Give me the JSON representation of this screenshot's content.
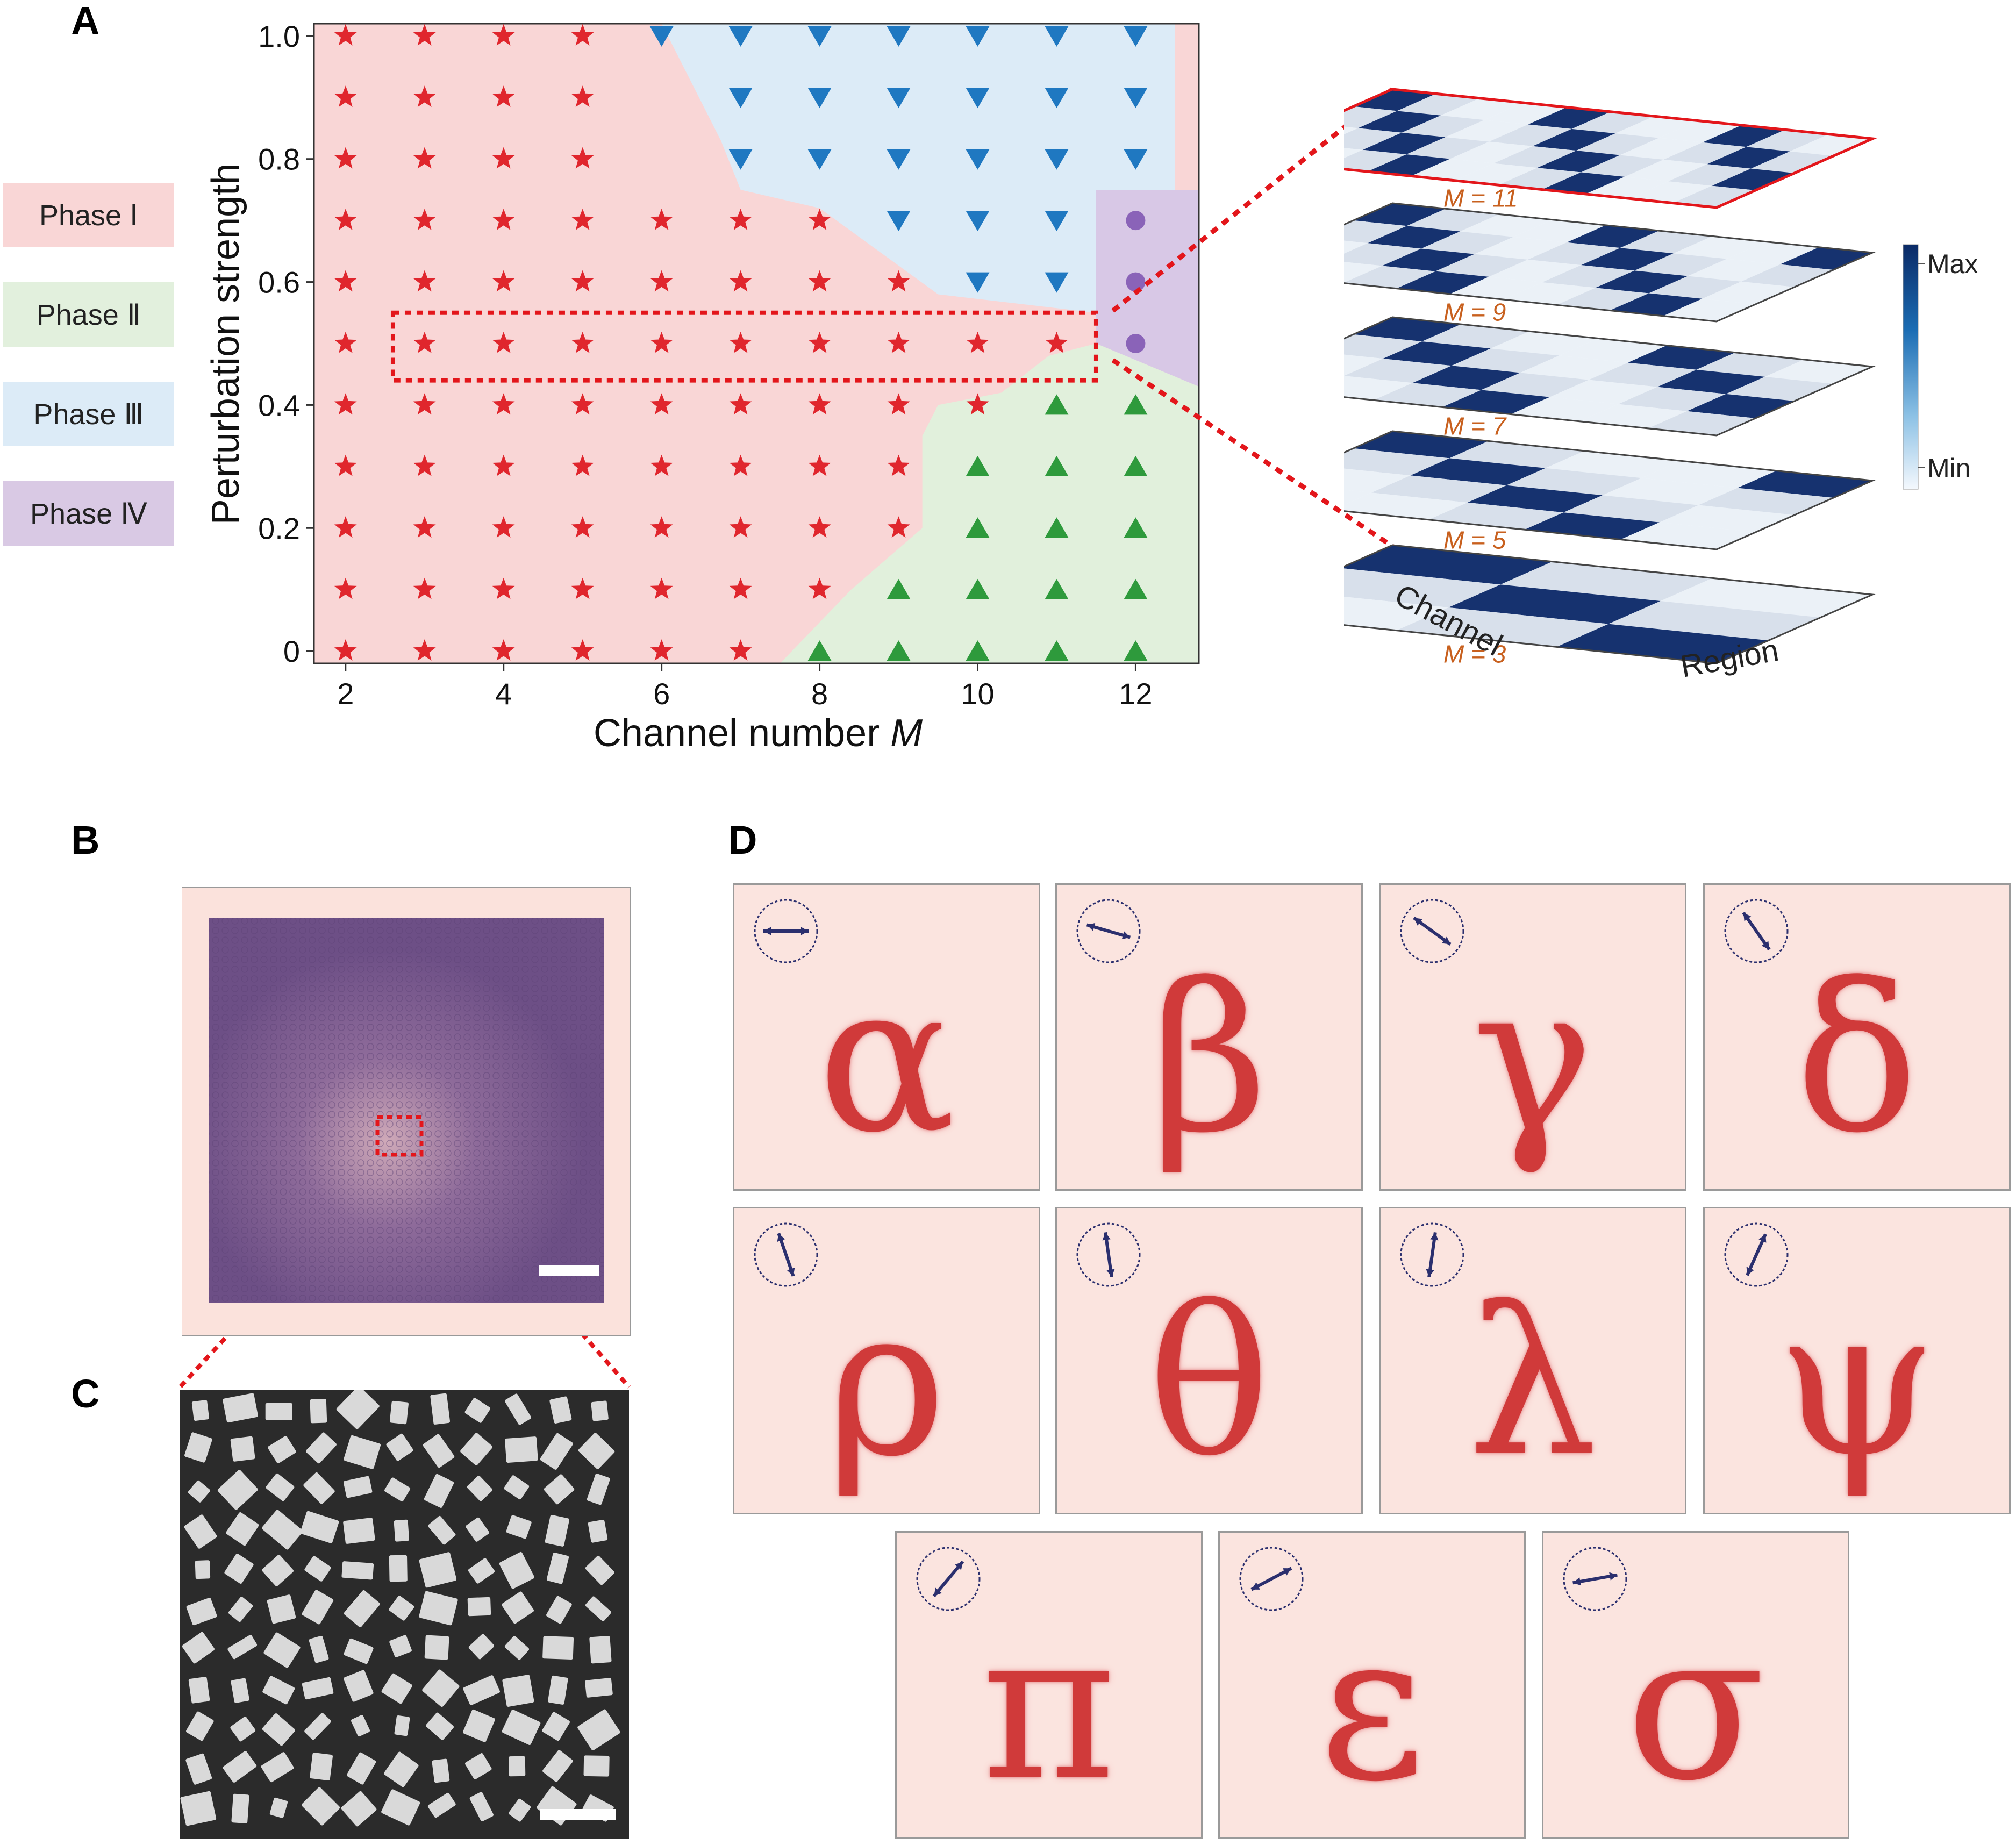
{
  "panels": {
    "a": "A",
    "b": "B",
    "c": "C",
    "d": "D"
  },
  "legend": [
    {
      "label": "Phase Ⅰ",
      "color": "#f9d6d6"
    },
    {
      "label": "Phase Ⅱ",
      "color": "#e2f0dd"
    },
    {
      "label": "Phase Ⅲ",
      "color": "#dcebf7"
    },
    {
      "label": "Phase Ⅳ",
      "color": "#d9c9e4"
    }
  ],
  "chart_data": {
    "type": "scatter",
    "xlabel_main": "Channel number ",
    "xlabel_var": "M",
    "ylabel": "Perturbation strength",
    "xlim": [
      1.6,
      12.8
    ],
    "ylim": [
      -0.02,
      1.02
    ],
    "xticks": [
      "2",
      "4",
      "6",
      "8",
      "10",
      "12"
    ],
    "yticks": [
      "0",
      "0.2",
      "0.4",
      "0.6",
      "0.8",
      "1.0"
    ],
    "grid": false,
    "series": [
      {
        "marker": "star",
        "color": "#e0262d",
        "points": [
          [
            2,
            0
          ],
          [
            2,
            0.1
          ],
          [
            2,
            0.2
          ],
          [
            2,
            0.3
          ],
          [
            2,
            0.4
          ],
          [
            2,
            0.5
          ],
          [
            2,
            0.6
          ],
          [
            2,
            0.7
          ],
          [
            2,
            0.8
          ],
          [
            2,
            0.9
          ],
          [
            2,
            1.0
          ],
          [
            3,
            0
          ],
          [
            3,
            0.1
          ],
          [
            3,
            0.2
          ],
          [
            3,
            0.3
          ],
          [
            3,
            0.4
          ],
          [
            3,
            0.5
          ],
          [
            3,
            0.6
          ],
          [
            3,
            0.7
          ],
          [
            3,
            0.8
          ],
          [
            3,
            0.9
          ],
          [
            3,
            1.0
          ],
          [
            4,
            0
          ],
          [
            4,
            0.1
          ],
          [
            4,
            0.2
          ],
          [
            4,
            0.3
          ],
          [
            4,
            0.4
          ],
          [
            4,
            0.5
          ],
          [
            4,
            0.6
          ],
          [
            4,
            0.7
          ],
          [
            4,
            0.8
          ],
          [
            4,
            0.9
          ],
          [
            4,
            1.0
          ],
          [
            5,
            0
          ],
          [
            5,
            0.1
          ],
          [
            5,
            0.2
          ],
          [
            5,
            0.3
          ],
          [
            5,
            0.4
          ],
          [
            5,
            0.5
          ],
          [
            5,
            0.6
          ],
          [
            5,
            0.7
          ],
          [
            5,
            0.8
          ],
          [
            5,
            0.9
          ],
          [
            5,
            1.0
          ],
          [
            6,
            0
          ],
          [
            6,
            0.1
          ],
          [
            6,
            0.2
          ],
          [
            6,
            0.3
          ],
          [
            6,
            0.4
          ],
          [
            6,
            0.5
          ],
          [
            6,
            0.6
          ],
          [
            6,
            0.7
          ],
          [
            7,
            0
          ],
          [
            7,
            0.1
          ],
          [
            7,
            0.2
          ],
          [
            7,
            0.3
          ],
          [
            7,
            0.4
          ],
          [
            7,
            0.5
          ],
          [
            7,
            0.6
          ],
          [
            7,
            0.7
          ],
          [
            8,
            0.1
          ],
          [
            8,
            0.2
          ],
          [
            8,
            0.3
          ],
          [
            8,
            0.4
          ],
          [
            8,
            0.5
          ],
          [
            8,
            0.6
          ],
          [
            8,
            0.7
          ],
          [
            9,
            0.2
          ],
          [
            9,
            0.3
          ],
          [
            9,
            0.4
          ],
          [
            9,
            0.5
          ],
          [
            9,
            0.6
          ],
          [
            10,
            0.4
          ],
          [
            10,
            0.5
          ],
          [
            11,
            0.5
          ]
        ]
      },
      {
        "marker": "triangle-down",
        "color": "#1f78c1",
        "points": [
          [
            6,
            1.0
          ],
          [
            7,
            1.0
          ],
          [
            7,
            0.9
          ],
          [
            7,
            0.8
          ],
          [
            8,
            1.0
          ],
          [
            8,
            0.9
          ],
          [
            8,
            0.8
          ],
          [
            9,
            1.0
          ],
          [
            9,
            0.9
          ],
          [
            9,
            0.8
          ],
          [
            9,
            0.7
          ],
          [
            10,
            1.0
          ],
          [
            10,
            0.9
          ],
          [
            10,
            0.8
          ],
          [
            10,
            0.7
          ],
          [
            10,
            0.6
          ],
          [
            11,
            1.0
          ],
          [
            11,
            0.9
          ],
          [
            11,
            0.8
          ],
          [
            11,
            0.7
          ],
          [
            11,
            0.6
          ],
          [
            12,
            1.0
          ],
          [
            12,
            0.9
          ],
          [
            12,
            0.8
          ]
        ]
      },
      {
        "marker": "triangle-up",
        "color": "#2e9a3c",
        "points": [
          [
            8,
            0
          ],
          [
            9,
            0
          ],
          [
            9,
            0.1
          ],
          [
            10,
            0
          ],
          [
            10,
            0.1
          ],
          [
            10,
            0.2
          ],
          [
            10,
            0.3
          ],
          [
            11,
            0
          ],
          [
            11,
            0.1
          ],
          [
            11,
            0.2
          ],
          [
            11,
            0.3
          ],
          [
            11,
            0.4
          ],
          [
            12,
            0
          ],
          [
            12,
            0.1
          ],
          [
            12,
            0.2
          ],
          [
            12,
            0.3
          ],
          [
            12,
            0.4
          ]
        ]
      },
      {
        "marker": "circle",
        "color": "#8a63b8",
        "points": [
          [
            12,
            0.5
          ],
          [
            12,
            0.6
          ],
          [
            12,
            0.7
          ]
        ]
      }
    ],
    "regions": [
      {
        "name": "Phase Ⅲ",
        "color": "#dcebf7",
        "poly": [
          [
            6,
            1.02
          ],
          [
            12.5,
            1.02
          ],
          [
            12.5,
            0.75
          ],
          [
            11.5,
            0.75
          ],
          [
            11.5,
            0.55
          ],
          [
            9.5,
            0.58
          ],
          [
            8,
            0.72
          ],
          [
            7,
            0.75
          ],
          [
            6.75,
            0.83
          ]
        ]
      },
      {
        "name": "Phase Ⅳ",
        "color": "#d8c8e6",
        "poly": [
          [
            11.5,
            0.75
          ],
          [
            12.8,
            0.75
          ],
          [
            12.8,
            0.43
          ],
          [
            11.5,
            0.5
          ]
        ]
      },
      {
        "name": "Phase Ⅱ",
        "color": "#e1f0dc",
        "poly": [
          [
            7.5,
            -0.02
          ],
          [
            12.8,
            -0.02
          ],
          [
            12.8,
            0.43
          ],
          [
            11.5,
            0.5
          ],
          [
            10.9,
            0.48
          ],
          [
            10.3,
            0.42
          ],
          [
            9.5,
            0.4
          ],
          [
            9.3,
            0.35
          ],
          [
            9.3,
            0.2
          ],
          [
            8.4,
            0.1
          ]
        ]
      }
    ],
    "highlight_box": {
      "x": [
        2.6,
        11.5
      ],
      "y": [
        0.44,
        0.55
      ]
    }
  },
  "stack": {
    "layers": [
      {
        "m": 11,
        "label": "M = 11"
      },
      {
        "m": 9,
        "label": "M = 9"
      },
      {
        "m": 7,
        "label": "M = 7"
      },
      {
        "m": 5,
        "label": "M = 5"
      },
      {
        "m": 3,
        "label": "M = 3"
      }
    ],
    "axis_channel": "Channel",
    "axis_region": "Region",
    "colorbar_max": "Max",
    "colorbar_min": "Min"
  },
  "letters_d": [
    {
      "glyph": "α",
      "angle": 0
    },
    {
      "glyph": "β",
      "angle": -16
    },
    {
      "glyph": "γ",
      "angle": -36
    },
    {
      "glyph": "δ",
      "angle": -55
    },
    {
      "glyph": "ρ",
      "angle": -71
    },
    {
      "glyph": "θ",
      "angle": -82
    },
    {
      "glyph": "λ",
      "angle": 82
    },
    {
      "glyph": "ψ",
      "angle": 66
    },
    {
      "glyph": "π",
      "angle": 50
    },
    {
      "glyph": "ε",
      "angle": 28
    },
    {
      "glyph": "σ",
      "angle": 10
    }
  ]
}
